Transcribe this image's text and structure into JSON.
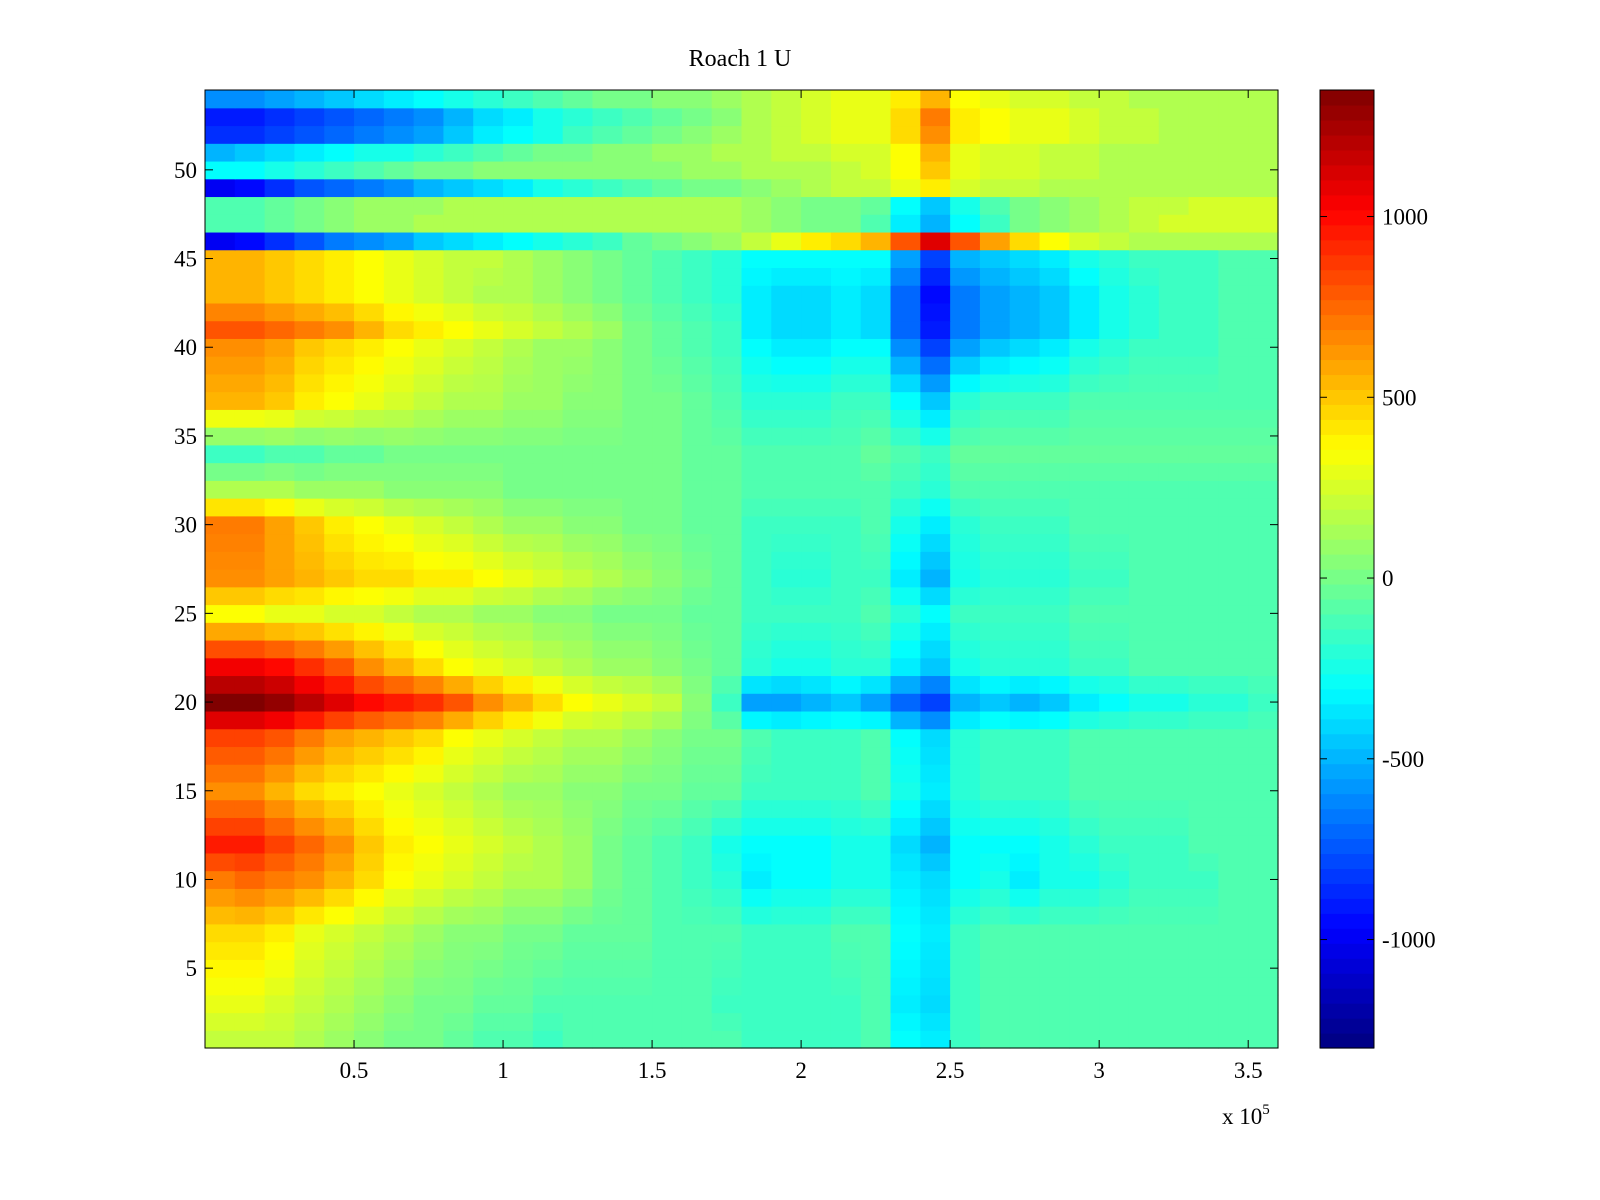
{
  "chart_data": {
    "type": "heatmap",
    "title": "Roach 1 U",
    "xlabel": "",
    "ylabel": "",
    "x_exponent_label": "x 10",
    "x_exponent_power": "5",
    "x_tick_values": [
      0.5,
      1,
      1.5,
      2,
      2.5,
      3,
      3.5
    ],
    "x_tick_labels": [
      "0.5",
      "1",
      "1.5",
      "2",
      "2.5",
      "3",
      "3.5"
    ],
    "xlim": [
      0.0,
      3.6
    ],
    "y_tick_values": [
      5,
      10,
      15,
      20,
      25,
      30,
      35,
      40,
      45,
      50
    ],
    "y_tick_labels": [
      "5",
      "10",
      "15",
      "20",
      "25",
      "30",
      "35",
      "40",
      "45",
      "50"
    ],
    "ylim": [
      0.5,
      54.5
    ],
    "rows": 54,
    "colormap": "jet",
    "clim": [
      -1300,
      1350
    ],
    "colorbar_tick_values": [
      -1000,
      -500,
      0,
      500,
      1000
    ],
    "colorbar_tick_labels": [
      "-1000",
      "-500",
      "0",
      "500",
      "1000"
    ],
    "colorbar_position": "right",
    "grid": false,
    "x_centers": [
      0.05,
      0.15,
      0.25,
      0.35,
      0.45,
      0.55,
      0.65,
      0.75,
      0.85,
      0.95,
      1.05,
      1.15,
      1.25,
      1.35,
      1.45,
      1.55,
      1.65,
      1.75,
      1.85,
      1.95,
      2.05,
      2.15,
      2.25,
      2.35,
      2.45,
      2.55,
      2.65,
      2.75,
      2.85,
      2.95,
      3.05,
      3.15,
      3.25,
      3.35,
      3.45,
      3.55
    ],
    "row_profiles": {
      "1": [
        200,
        200,
        200,
        150,
        100,
        50,
        0,
        0,
        -50,
        -100,
        -100,
        -150,
        -100,
        -100,
        -100,
        -100,
        -100,
        -100,
        -150,
        -150,
        -150,
        -150,
        -100,
        -300,
        -350,
        -150,
        -100,
        -100,
        -100,
        -100,
        -100,
        -100,
        -100,
        -100,
        -100,
        -100
      ],
      "3": [
        300,
        300,
        250,
        200,
        150,
        100,
        50,
        0,
        0,
        -50,
        -50,
        -100,
        -100,
        -100,
        -100,
        -100,
        -100,
        -150,
        -150,
        -150,
        -150,
        -150,
        -100,
        -350,
        -400,
        -150,
        -100,
        -100,
        -100,
        -100,
        -100,
        -100,
        -100,
        -100,
        -100,
        -100
      ],
      "7": [
        450,
        450,
        400,
        300,
        250,
        200,
        150,
        100,
        50,
        50,
        0,
        0,
        -50,
        -50,
        -50,
        -100,
        -100,
        -100,
        -150,
        -150,
        -150,
        -100,
        -100,
        -300,
        -350,
        -150,
        -100,
        -100,
        -100,
        -100,
        -100,
        -100,
        -100,
        -100,
        -100,
        -100
      ],
      "10": [
        700,
        750,
        700,
        650,
        550,
        450,
        350,
        300,
        250,
        200,
        150,
        150,
        100,
        0,
        -50,
        -100,
        -150,
        -200,
        -350,
        -300,
        -300,
        -250,
        -250,
        -350,
        -400,
        -300,
        -250,
        -350,
        -250,
        -250,
        -200,
        -150,
        -150,
        -150,
        -100,
        -100
      ],
      "12": [
        950,
        950,
        850,
        750,
        650,
        500,
        400,
        350,
        300,
        250,
        200,
        150,
        100,
        0,
        -50,
        -100,
        -150,
        -250,
        -300,
        -300,
        -300,
        -250,
        -250,
        -400,
        -500,
        -300,
        -300,
        -300,
        -250,
        -200,
        -150,
        -150,
        -150,
        -100,
        -100,
        -100
      ],
      "15": [
        650,
        650,
        550,
        450,
        400,
        350,
        300,
        250,
        200,
        150,
        100,
        100,
        50,
        50,
        0,
        0,
        -50,
        -50,
        -150,
        -150,
        -150,
        -150,
        -100,
        -250,
        -350,
        -200,
        -150,
        -150,
        -150,
        -100,
        -100,
        -100,
        -100,
        -100,
        -100,
        -100
      ],
      "18": [
        850,
        850,
        800,
        700,
        600,
        550,
        500,
        450,
        350,
        300,
        250,
        200,
        150,
        150,
        100,
        50,
        0,
        0,
        -100,
        -150,
        -150,
        -150,
        -100,
        -300,
        -400,
        -200,
        -150,
        -150,
        -150,
        -100,
        -100,
        -100,
        -100,
        -100,
        -100,
        -100
      ],
      "20": [
        1350,
        1350,
        1300,
        1200,
        1100,
        1000,
        950,
        900,
        800,
        650,
        550,
        450,
        350,
        300,
        250,
        200,
        50,
        -150,
        -550,
        -550,
        -500,
        -450,
        -550,
        -700,
        -800,
        -500,
        -450,
        -500,
        -450,
        -350,
        -300,
        -250,
        -250,
        -200,
        -200,
        -150
      ],
      "22": [
        1050,
        1050,
        1000,
        900,
        800,
        650,
        550,
        450,
        350,
        300,
        250,
        200,
        150,
        100,
        100,
        50,
        0,
        -50,
        -200,
        -250,
        -250,
        -200,
        -200,
        -350,
        -450,
        -250,
        -200,
        -200,
        -200,
        -150,
        -150,
        -100,
        -100,
        -100,
        -100,
        -100
      ],
      "25": [
        350,
        350,
        300,
        300,
        250,
        250,
        200,
        150,
        150,
        100,
        100,
        50,
        50,
        0,
        0,
        0,
        -50,
        -50,
        -150,
        -150,
        -150,
        -150,
        -100,
        -200,
        -300,
        -150,
        -150,
        -150,
        -150,
        -100,
        -100,
        -100,
        -100,
        -100,
        -100,
        -100
      ],
      "27": [
        650,
        650,
        600,
        550,
        500,
        450,
        450,
        400,
        400,
        350,
        300,
        250,
        200,
        150,
        100,
        50,
        0,
        -50,
        -150,
        -200,
        -200,
        -150,
        -150,
        -350,
        -500,
        -250,
        -200,
        -200,
        -200,
        -150,
        -150,
        -100,
        -100,
        -100,
        -100,
        -100
      ],
      "30": [
        700,
        700,
        600,
        500,
        400,
        350,
        300,
        250,
        200,
        150,
        100,
        100,
        50,
        50,
        0,
        0,
        -50,
        -50,
        -150,
        -150,
        -150,
        -150,
        -100,
        -250,
        -350,
        -200,
        -150,
        -150,
        -150,
        -100,
        -100,
        -100,
        -100,
        -100,
        -100,
        -100
      ],
      "32": [
        150,
        150,
        150,
        100,
        100,
        100,
        50,
        50,
        50,
        50,
        0,
        0,
        0,
        0,
        0,
        0,
        -50,
        -50,
        -100,
        -100,
        -100,
        -100,
        -100,
        -150,
        -200,
        -100,
        -100,
        -100,
        -100,
        -100,
        -100,
        -100,
        -100,
        -100,
        -100,
        -100
      ],
      "34": [
        -150,
        -150,
        -100,
        -100,
        -50,
        -50,
        0,
        0,
        0,
        0,
        0,
        0,
        0,
        0,
        0,
        0,
        -50,
        -50,
        -100,
        -100,
        -100,
        -100,
        -50,
        -100,
        -150,
        -50,
        -50,
        -50,
        -50,
        -50,
        -50,
        -50,
        -50,
        -50,
        -50,
        -50
      ],
      "37": [
        550,
        550,
        500,
        400,
        350,
        300,
        250,
        200,
        150,
        150,
        100,
        100,
        50,
        50,
        0,
        0,
        -50,
        -100,
        -200,
        -200,
        -200,
        -150,
        -150,
        -300,
        -450,
        -200,
        -150,
        -150,
        -150,
        -100,
        -100,
        -100,
        -100,
        -100,
        -100,
        -100
      ],
      "40": [
        650,
        650,
        600,
        500,
        450,
        400,
        350,
        300,
        250,
        200,
        150,
        100,
        100,
        50,
        0,
        -50,
        -100,
        -150,
        -300,
        -350,
        -350,
        -300,
        -300,
        -600,
        -800,
        -550,
        -450,
        -400,
        -350,
        -250,
        -200,
        -150,
        -150,
        -150,
        -100,
        -100
      ],
      "41": [
        800,
        800,
        750,
        700,
        650,
        550,
        450,
        400,
        350,
        300,
        250,
        200,
        150,
        100,
        0,
        -50,
        -100,
        -150,
        -350,
        -400,
        -400,
        -350,
        -400,
        -700,
        -900,
        -650,
        -550,
        -500,
        -450,
        -350,
        -250,
        -200,
        -150,
        -150,
        -100,
        -100
      ],
      "43": [
        550,
        550,
        500,
        450,
        400,
        350,
        300,
        250,
        200,
        150,
        150,
        100,
        50,
        0,
        -50,
        -100,
        -150,
        -200,
        -350,
        -400,
        -400,
        -350,
        -400,
        -700,
        -950,
        -650,
        -550,
        -500,
        -450,
        -350,
        -250,
        -200,
        -150,
        -150,
        -100,
        -100
      ],
      "45": [
        550,
        550,
        500,
        450,
        400,
        350,
        300,
        250,
        200,
        200,
        150,
        100,
        50,
        0,
        -50,
        -100,
        -150,
        -200,
        -300,
        -300,
        -300,
        -300,
        -300,
        -550,
        -800,
        -500,
        -450,
        -400,
        -350,
        -250,
        -200,
        -150,
        -150,
        -150,
        -100,
        -100
      ],
      "46": [
        -1000,
        -950,
        -850,
        -750,
        -650,
        -600,
        -550,
        -450,
        -400,
        -350,
        -300,
        -250,
        -200,
        -150,
        -50,
        0,
        50,
        100,
        200,
        300,
        400,
        450,
        550,
        800,
        1100,
        800,
        600,
        450,
        350,
        250,
        200,
        150,
        150,
        150,
        150,
        150
      ],
      "47": [
        -100,
        -100,
        -50,
        0,
        50,
        100,
        100,
        150,
        150,
        150,
        150,
        150,
        150,
        150,
        150,
        150,
        150,
        150,
        100,
        50,
        0,
        0,
        -100,
        -350,
        -500,
        -300,
        -150,
        0,
        50,
        100,
        150,
        200,
        250,
        250,
        250,
        250
      ],
      "48": [
        -100,
        -100,
        -50,
        0,
        50,
        100,
        100,
        100,
        150,
        150,
        150,
        150,
        150,
        150,
        150,
        150,
        150,
        150,
        100,
        50,
        0,
        0,
        -50,
        -300,
        -450,
        -250,
        -100,
        0,
        50,
        100,
        150,
        200,
        200,
        250,
        250,
        250
      ],
      "49": [
        -1000,
        -950,
        -850,
        -750,
        -700,
        -650,
        -600,
        -500,
        -450,
        -400,
        -350,
        -250,
        -200,
        -150,
        -100,
        -50,
        0,
        0,
        50,
        100,
        150,
        200,
        200,
        300,
        400,
        250,
        200,
        200,
        150,
        150,
        150,
        150,
        150,
        150,
        150,
        150
      ],
      "50": [
        -300,
        -300,
        -250,
        -200,
        -150,
        -100,
        -50,
        0,
        0,
        50,
        50,
        50,
        50,
        50,
        50,
        50,
        100,
        100,
        150,
        150,
        150,
        200,
        250,
        350,
        500,
        300,
        250,
        250,
        200,
        200,
        150,
        150,
        150,
        150,
        150,
        150
      ],
      "51": [
        -500,
        -450,
        -400,
        -350,
        -300,
        -250,
        -250,
        -200,
        -150,
        -100,
        -50,
        0,
        0,
        50,
        50,
        100,
        100,
        150,
        150,
        200,
        200,
        250,
        250,
        350,
        550,
        300,
        250,
        250,
        200,
        200,
        150,
        150,
        150,
        150,
        150,
        150
      ],
      "52": [
        -850,
        -850,
        -800,
        -750,
        -700,
        -650,
        -600,
        -550,
        -450,
        -350,
        -300,
        -250,
        -150,
        -100,
        -50,
        0,
        50,
        100,
        150,
        200,
        250,
        300,
        300,
        450,
        650,
        400,
        350,
        300,
        300,
        250,
        200,
        200,
        150,
        150,
        150,
        150
      ],
      "53": [
        -900,
        -900,
        -850,
        -800,
        -750,
        -700,
        -650,
        -600,
        -500,
        -400,
        -350,
        -250,
        -200,
        -150,
        -100,
        -50,
        0,
        50,
        150,
        200,
        250,
        300,
        300,
        450,
        700,
        400,
        350,
        300,
        300,
        250,
        200,
        200,
        150,
        150,
        150,
        150
      ],
      "54": [
        -600,
        -600,
        -550,
        -500,
        -450,
        -400,
        -350,
        -300,
        -250,
        -200,
        -150,
        -100,
        -50,
        0,
        0,
        50,
        50,
        100,
        150,
        200,
        250,
        300,
        300,
        400,
        550,
        350,
        300,
        250,
        250,
        200,
        200,
        150,
        150,
        150,
        150,
        150
      ]
    }
  }
}
